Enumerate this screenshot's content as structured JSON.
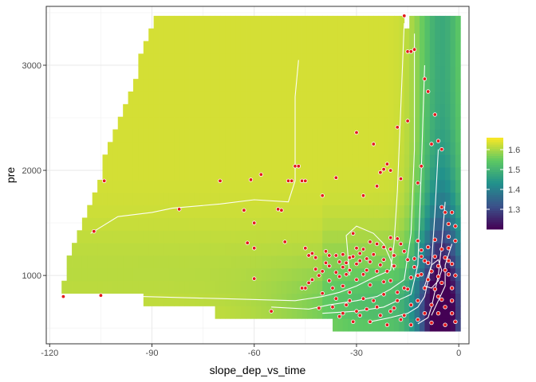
{
  "chart_data": {
    "type": "heatmap",
    "title": "",
    "xlabel": "slope_dep_vs_time",
    "ylabel": "pre",
    "xlim": [
      -121,
      3
    ],
    "ylim": [
      350,
      3560
    ],
    "x_ticks": [
      -120,
      -90,
      -60,
      -30,
      0
    ],
    "x_tick_labels": [
      "-120",
      "-90",
      "-60",
      "-30",
      "0"
    ],
    "y_ticks": [
      1000,
      2000,
      3000
    ],
    "y_tick_labels": [
      "1000",
      "2000",
      "3000"
    ],
    "grid": true,
    "legend": {
      "position": "right",
      "title": "",
      "min": 1.2,
      "max": 1.66,
      "breaks": [
        1.3,
        1.4,
        1.5,
        1.6
      ],
      "break_labels": [
        "1.3",
        "1.4",
        "1.5",
        "1.6"
      ]
    },
    "colorscale": [
      "#440154",
      "#3b528b",
      "#21918c",
      "#5ec962",
      "#fde725"
    ],
    "point_style": {
      "fill": "#e41a1c",
      "stroke": "#ffffff"
    },
    "contour_color": "#ffffff",
    "points": [
      [
        -116,
        800
      ],
      [
        -105,
        810
      ],
      [
        -107,
        1420
      ],
      [
        -104,
        1900
      ],
      [
        -82,
        1630
      ],
      [
        -70,
        1900
      ],
      [
        -63,
        1620
      ],
      [
        -62,
        1310
      ],
      [
        -61,
        1910
      ],
      [
        -60,
        1500
      ],
      [
        -60,
        970
      ],
      [
        -60,
        1260
      ],
      [
        -58,
        1960
      ],
      [
        -55,
        660
      ],
      [
        -53,
        1630
      ],
      [
        -52,
        1620
      ],
      [
        -51,
        1320
      ],
      [
        -50,
        1900
      ],
      [
        -49,
        1900
      ],
      [
        -48,
        2040
      ],
      [
        -47,
        2040
      ],
      [
        -46,
        1900
      ],
      [
        -45,
        1900
      ],
      [
        -45,
        1260
      ],
      [
        -44,
        1190
      ],
      [
        -43,
        1210
      ],
      [
        -42,
        1170
      ],
      [
        -41,
        690
      ],
      [
        -40,
        1760
      ],
      [
        -39,
        1230
      ],
      [
        -38,
        1090
      ],
      [
        -37,
        700
      ],
      [
        -36,
        1930
      ],
      [
        -35,
        1130
      ],
      [
        -34,
        1080
      ],
      [
        -33,
        1010
      ],
      [
        -32,
        1170
      ],
      [
        -31,
        1400
      ],
      [
        -30,
        1260
      ],
      [
        -30,
        2360
      ],
      [
        -29,
        1140
      ],
      [
        -28,
        1760
      ],
      [
        -27,
        1050
      ],
      [
        -26,
        910
      ],
      [
        -25,
        2250
      ],
      [
        -24,
        1850
      ],
      [
        -23,
        1980
      ],
      [
        -22,
        2010
      ],
      [
        -22,
        1150
      ],
      [
        -21,
        2060
      ],
      [
        -20,
        2000
      ],
      [
        -20,
        1360
      ],
      [
        -19,
        1090
      ],
      [
        -18,
        2410
      ],
      [
        -17,
        1920
      ],
      [
        -16,
        3470
      ],
      [
        -15,
        3130
      ],
      [
        -15,
        2470
      ],
      [
        -14,
        3130
      ],
      [
        -13,
        3150
      ],
      [
        -12,
        1000
      ],
      [
        -12,
        1880
      ],
      [
        -11,
        2040
      ],
      [
        -10,
        2870
      ],
      [
        -9,
        2750
      ],
      [
        -8,
        2250
      ],
      [
        -7,
        2530
      ],
      [
        -6,
        2280
      ],
      [
        -5,
        2200
      ],
      [
        -5,
        1650
      ],
      [
        -4,
        1600
      ],
      [
        -3,
        1490
      ],
      [
        -2,
        1600
      ],
      [
        -1,
        1470
      ],
      [
        -2,
        880
      ],
      [
        -3,
        1010
      ],
      [
        -5,
        770
      ],
      [
        -6,
        640
      ],
      [
        -8,
        550
      ],
      [
        -10,
        1140
      ],
      [
        -11,
        1240
      ],
      [
        -12,
        1330
      ],
      [
        -9,
        1270
      ],
      [
        -7,
        1340
      ],
      [
        -6,
        1090
      ],
      [
        -4,
        1170
      ],
      [
        -3,
        1260
      ],
      [
        -2,
        640
      ],
      [
        -1,
        560
      ],
      [
        -4,
        530
      ],
      [
        -14,
        720
      ],
      [
        -16,
        620
      ],
      [
        -18,
        840
      ],
      [
        -20,
        950
      ],
      [
        -22,
        820
      ],
      [
        -24,
        700
      ],
      [
        -26,
        560
      ],
      [
        -28,
        780
      ],
      [
        -30,
        660
      ],
      [
        -32,
        840
      ],
      [
        -34,
        900
      ],
      [
        -36,
        1030
      ],
      [
        -25,
        1200
      ],
      [
        -27,
        1160
      ],
      [
        -29,
        1210
      ],
      [
        -31,
        1180
      ],
      [
        -33,
        1120
      ],
      [
        -35,
        990
      ],
      [
        -37,
        880
      ],
      [
        -39,
        1120
      ],
      [
        -41,
        1000
      ],
      [
        -43,
        960
      ],
      [
        -45,
        880
      ],
      [
        -23,
        1100
      ],
      [
        -21,
        1040
      ],
      [
        -19,
        1190
      ],
      [
        -17,
        1300
      ],
      [
        -15,
        1150
      ],
      [
        -13,
        1080
      ],
      [
        -11,
        1010
      ],
      [
        -9,
        960
      ],
      [
        -7,
        870
      ],
      [
        -5,
        930
      ],
      [
        -3,
        1370
      ],
      [
        -1,
        1330
      ],
      [
        -2,
        1110
      ],
      [
        -4,
        1050
      ],
      [
        -6,
        990
      ],
      [
        -8,
        1040
      ],
      [
        -10,
        880
      ],
      [
        -12,
        760
      ],
      [
        -14,
        980
      ],
      [
        -16,
        1230
      ],
      [
        -18,
        1350
      ],
      [
        -20,
        1250
      ],
      [
        -22,
        1270
      ],
      [
        -24,
        1300
      ],
      [
        -26,
        1320
      ],
      [
        -28,
        1250
      ],
      [
        -30,
        1110
      ],
      [
        -32,
        1050
      ],
      [
        -34,
        1200
      ],
      [
        -36,
        1190
      ],
      [
        -38,
        1190
      ],
      [
        -40,
        1040
      ],
      [
        -42,
        1060
      ],
      [
        -44,
        930
      ],
      [
        -46,
        880
      ],
      [
        -33,
        720
      ],
      [
        -35,
        610
      ],
      [
        -31,
        560
      ],
      [
        -29,
        620
      ],
      [
        -27,
        680
      ],
      [
        -25,
        760
      ],
      [
        -23,
        620
      ],
      [
        -21,
        530
      ],
      [
        -19,
        690
      ],
      [
        -17,
        580
      ],
      [
        -15,
        870
      ],
      [
        -13,
        1160
      ],
      [
        -11,
        1180
      ],
      [
        -9,
        1120
      ],
      [
        -7,
        1180
      ],
      [
        -5,
        1250
      ],
      [
        -3,
        1140
      ],
      [
        -1,
        1000
      ],
      [
        -2,
        760
      ],
      [
        -4,
        700
      ],
      [
        -6,
        800
      ],
      [
        -8,
        720
      ],
      [
        -10,
        640
      ],
      [
        -12,
        580
      ],
      [
        -14,
        530
      ],
      [
        -16,
        880
      ],
      [
        -18,
        760
      ],
      [
        -20,
        660
      ],
      [
        -22,
        940
      ],
      [
        -24,
        1040
      ],
      [
        -26,
        1130
      ],
      [
        -28,
        1010
      ],
      [
        -30,
        960
      ],
      [
        -32,
        760
      ],
      [
        -34,
        640
      ],
      [
        -36,
        780
      ],
      [
        -38,
        950
      ],
      [
        -40,
        830
      ]
    ]
  }
}
